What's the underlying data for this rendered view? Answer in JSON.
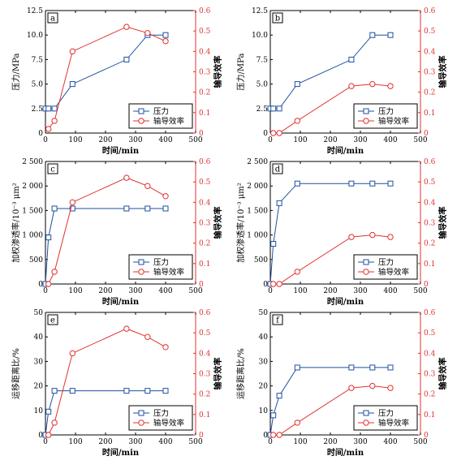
{
  "chart_data": [
    {
      "type": "line",
      "panel_label": "a",
      "xlabel": "时间/min",
      "ylabel": "压力/MPa",
      "y2label": "输导效率",
      "xlim": [
        0,
        500
      ],
      "ylim": [
        0,
        12.5
      ],
      "y2lim": [
        0,
        0.6
      ],
      "xticks": [
        "0",
        "100",
        "200",
        "300",
        "400",
        "500"
      ],
      "yticks": [
        "0",
        "2.5",
        "5.0",
        "7.5",
        "10.0",
        "12.5"
      ],
      "y2ticks": [
        "0",
        "0.1",
        "0.2",
        "0.3",
        "0.4",
        "0.5",
        "0.6"
      ],
      "legend_position": "bottom-right",
      "series": [
        {
          "name": "压力",
          "axis": "left",
          "marker": "square",
          "color": "#1f4fa0",
          "x": [
            0,
            10,
            30,
            90,
            270,
            340,
            400
          ],
          "y": [
            2.5,
            2.5,
            2.5,
            5.0,
            7.5,
            10.0,
            10.0
          ]
        },
        {
          "name": "输导效率",
          "axis": "right",
          "marker": "circle",
          "color": "#e0322f",
          "x": [
            10,
            30,
            90,
            270,
            340,
            400
          ],
          "y": [
            0.02,
            0.06,
            0.4,
            0.52,
            0.49,
            0.45
          ]
        }
      ]
    },
    {
      "type": "line",
      "panel_label": "b",
      "xlabel": "时间/min",
      "ylabel": "压力/MPa",
      "y2label": "输导效率",
      "xlim": [
        0,
        500
      ],
      "ylim": [
        0,
        12.5
      ],
      "y2lim": [
        0,
        0.6
      ],
      "xticks": [
        "0",
        "100",
        "200",
        "300",
        "400",
        "500"
      ],
      "yticks": [
        "0",
        "2.5",
        "5.0",
        "7.5",
        "10.0",
        "12.5"
      ],
      "y2ticks": [
        "0",
        "0.1",
        "0.2",
        "0.3",
        "0.4",
        "0.5",
        "0.6"
      ],
      "legend_position": "bottom-right",
      "series": [
        {
          "name": "压力",
          "axis": "left",
          "marker": "square",
          "color": "#1f4fa0",
          "x": [
            0,
            10,
            30,
            90,
            270,
            340,
            400
          ],
          "y": [
            2.5,
            2.5,
            2.5,
            5.0,
            7.5,
            10.0,
            10.0
          ]
        },
        {
          "name": "输导效率",
          "axis": "right",
          "marker": "circle",
          "color": "#e0322f",
          "x": [
            10,
            30,
            90,
            270,
            340,
            400
          ],
          "y": [
            0,
            0,
            0.06,
            0.23,
            0.24,
            0.23
          ]
        }
      ]
    },
    {
      "type": "line",
      "panel_label": "c",
      "xlabel": "时间/min",
      "ylabel": "加权渗透率/10⁻³ μm²",
      "y2label": "输导效率",
      "xlim": [
        0,
        500
      ],
      "ylim": [
        0,
        2500
      ],
      "y2lim": [
        0,
        0.6
      ],
      "xticks": [
        "0",
        "100",
        "200",
        "300",
        "400",
        "500"
      ],
      "yticks": [
        "0",
        "500",
        "1 000",
        "1 500",
        "2 000",
        "2 500"
      ],
      "y2ticks": [
        "0",
        "0.1",
        "0.2",
        "0.3",
        "0.4",
        "0.5",
        "0.6"
      ],
      "legend_position": "bottom-right",
      "series": [
        {
          "name": "压力",
          "axis": "left",
          "marker": "square",
          "color": "#1f4fa0",
          "x": [
            0,
            10,
            30,
            90,
            270,
            340,
            400
          ],
          "y": [
            0,
            950,
            1540,
            1540,
            1540,
            1540,
            1540
          ]
        },
        {
          "name": "输导效率",
          "axis": "right",
          "marker": "circle",
          "color": "#e0322f",
          "x": [
            10,
            30,
            90,
            270,
            340,
            400
          ],
          "y": [
            0,
            0.06,
            0.4,
            0.52,
            0.48,
            0.43
          ]
        }
      ]
    },
    {
      "type": "line",
      "panel_label": "d",
      "xlabel": "时间/min",
      "ylabel": "加权渗透率/10⁻³ μm²",
      "y2label": "输导效率",
      "xlim": [
        0,
        500
      ],
      "ylim": [
        0,
        2500
      ],
      "y2lim": [
        0,
        0.6
      ],
      "xticks": [
        "0",
        "100",
        "200",
        "300",
        "400",
        "500"
      ],
      "yticks": [
        "0",
        "500",
        "1 000",
        "1 500",
        "2 000",
        "2 500"
      ],
      "y2ticks": [
        "0",
        "0.1",
        "0.2",
        "0.3",
        "0.4",
        "0.5",
        "0.6"
      ],
      "legend_position": "bottom-right",
      "series": [
        {
          "name": "压力",
          "axis": "left",
          "marker": "square",
          "color": "#1f4fa0",
          "x": [
            0,
            10,
            30,
            90,
            270,
            340,
            400
          ],
          "y": [
            0,
            820,
            1650,
            2050,
            2050,
            2050,
            2050
          ]
        },
        {
          "name": "输导效率",
          "axis": "right",
          "marker": "circle",
          "color": "#e0322f",
          "x": [
            10,
            30,
            90,
            270,
            340,
            400
          ],
          "y": [
            0,
            0,
            0.06,
            0.23,
            0.24,
            0.23
          ]
        }
      ]
    },
    {
      "type": "line",
      "panel_label": "e",
      "xlabel": "时间/min",
      "ylabel": "运移距离比/%",
      "y2label": "输导效率",
      "xlim": [
        0,
        500
      ],
      "ylim": [
        0,
        50
      ],
      "y2lim": [
        0,
        0.6
      ],
      "xticks": [
        "0",
        "100",
        "200",
        "300",
        "400",
        "500"
      ],
      "yticks": [
        "0",
        "10",
        "20",
        "30",
        "40",
        "50"
      ],
      "y2ticks": [
        "0",
        "0.1",
        "0.2",
        "0.3",
        "0.4",
        "0.5",
        "0.6"
      ],
      "legend_position": "bottom-right",
      "series": [
        {
          "name": "压力",
          "axis": "left",
          "marker": "square",
          "color": "#1f4fa0",
          "x": [
            0,
            10,
            30,
            90,
            270,
            340,
            400
          ],
          "y": [
            0,
            9.5,
            18,
            18,
            18,
            18,
            18
          ]
        },
        {
          "name": "输导效率",
          "axis": "right",
          "marker": "circle",
          "color": "#e0322f",
          "x": [
            10,
            30,
            90,
            270,
            340,
            400
          ],
          "y": [
            0,
            0.06,
            0.4,
            0.52,
            0.48,
            0.43
          ]
        }
      ]
    },
    {
      "type": "line",
      "panel_label": "f",
      "xlabel": "时间/min",
      "ylabel": "运移距离比/%",
      "y2label": "输导效率",
      "xlim": [
        0,
        500
      ],
      "ylim": [
        0,
        50
      ],
      "y2lim": [
        0,
        0.6
      ],
      "xticks": [
        "0",
        "100",
        "200",
        "300",
        "400",
        "500"
      ],
      "yticks": [
        "0",
        "10",
        "20",
        "30",
        "40",
        "50"
      ],
      "y2ticks": [
        "0",
        "0.1",
        "0.2",
        "0.3",
        "0.4",
        "0.5",
        "0.6"
      ],
      "legend_position": "bottom-right",
      "series": [
        {
          "name": "压力",
          "axis": "left",
          "marker": "square",
          "color": "#1f4fa0",
          "x": [
            0,
            10,
            30,
            90,
            270,
            340,
            400
          ],
          "y": [
            0,
            8,
            16,
            27.5,
            27.5,
            27.5,
            27.5
          ]
        },
        {
          "name": "输导效率",
          "axis": "right",
          "marker": "circle",
          "color": "#e0322f",
          "x": [
            10,
            30,
            90,
            270,
            340,
            400
          ],
          "y": [
            0,
            0,
            0.06,
            0.23,
            0.24,
            0.23
          ]
        }
      ]
    }
  ]
}
